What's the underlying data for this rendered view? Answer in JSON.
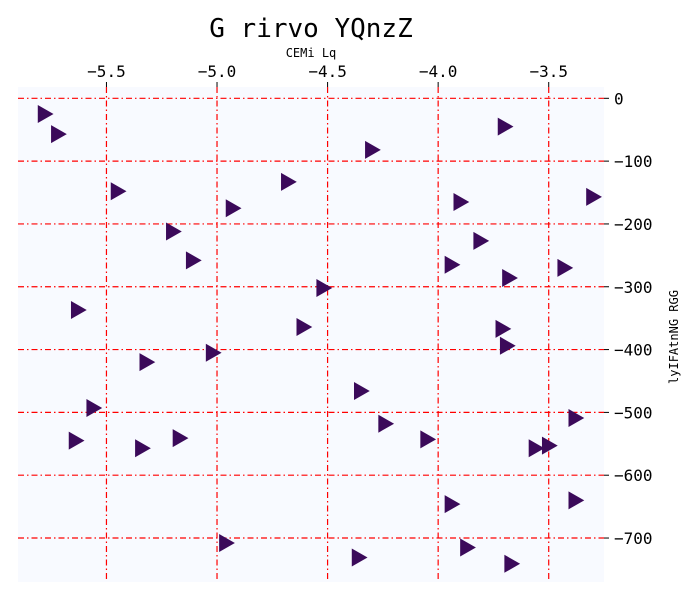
{
  "chart_data": {
    "type": "scatter",
    "title": "G rirvo YQnzZ",
    "xlabel": "CEMi Lq",
    "ylabel": "lyIFAtnNG RGG",
    "xlim": [
      -5.9,
      -3.25
    ],
    "ylim": [
      -770,
      18
    ],
    "x_ticks": [
      -5.5,
      -5.0,
      -4.5,
      -4.0,
      -3.5
    ],
    "x_tick_labels": [
      "−5.5",
      "−5.0",
      "−4.5",
      "−4.0",
      "−3.5"
    ],
    "y_ticks": [
      0,
      -100,
      -200,
      -300,
      -400,
      -500,
      -600,
      -700
    ],
    "y_tick_labels": [
      "0",
      "−100",
      "−200",
      "−300",
      "−400",
      "−500",
      "−600",
      "−700"
    ],
    "x_axis_position": "top",
    "y_axis_position": "right",
    "grid": true,
    "grid_color": "#ff0000",
    "plot_background": "#f8faff",
    "marker": "triangle-right",
    "marker_color": "#3b0a5a",
    "points": [
      {
        "x": -5.78,
        "y": -25
      },
      {
        "x": -5.72,
        "y": -57
      },
      {
        "x": -3.7,
        "y": -45
      },
      {
        "x": -4.3,
        "y": -82
      },
      {
        "x": -4.68,
        "y": -133
      },
      {
        "x": -5.45,
        "y": -148
      },
      {
        "x": -4.93,
        "y": -175
      },
      {
        "x": -3.9,
        "y": -165
      },
      {
        "x": -3.3,
        "y": -157
      },
      {
        "x": -5.2,
        "y": -212
      },
      {
        "x": -3.81,
        "y": -227
      },
      {
        "x": -5.11,
        "y": -258
      },
      {
        "x": -3.94,
        "y": -265
      },
      {
        "x": -3.68,
        "y": -286
      },
      {
        "x": -3.43,
        "y": -270
      },
      {
        "x": -4.52,
        "y": -302
      },
      {
        "x": -5.63,
        "y": -337
      },
      {
        "x": -4.61,
        "y": -364
      },
      {
        "x": -3.71,
        "y": -367
      },
      {
        "x": -3.69,
        "y": -394
      },
      {
        "x": -5.32,
        "y": -420
      },
      {
        "x": -5.02,
        "y": -405
      },
      {
        "x": -4.35,
        "y": -466
      },
      {
        "x": -5.56,
        "y": -493
      },
      {
        "x": -3.38,
        "y": -509
      },
      {
        "x": -4.24,
        "y": -518
      },
      {
        "x": -5.64,
        "y": -545
      },
      {
        "x": -5.17,
        "y": -541
      },
      {
        "x": -5.34,
        "y": -557
      },
      {
        "x": -4.05,
        "y": -543
      },
      {
        "x": -3.56,
        "y": -557
      },
      {
        "x": -3.5,
        "y": -553
      },
      {
        "x": -3.94,
        "y": -646
      },
      {
        "x": -3.38,
        "y": -640
      },
      {
        "x": -4.96,
        "y": -708
      },
      {
        "x": -3.87,
        "y": -715
      },
      {
        "x": -4.36,
        "y": -731
      },
      {
        "x": -3.67,
        "y": -741
      }
    ]
  }
}
